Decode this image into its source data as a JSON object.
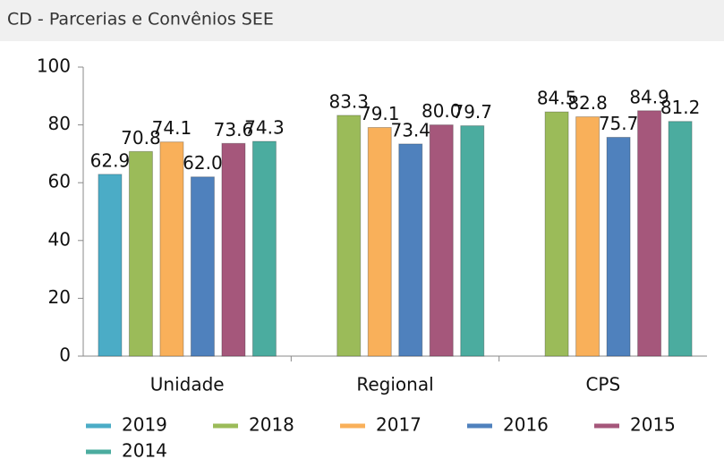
{
  "chart_data": {
    "type": "bar",
    "title": "CD - Parcerias e Convênios SEE",
    "categories": [
      "Unidade",
      "Regional",
      "CPS"
    ],
    "series": [
      {
        "name": "2019",
        "color": "#4bacc6",
        "values": [
          62.9,
          null,
          null
        ],
        "value_labels": [
          "62.9",
          null,
          null
        ]
      },
      {
        "name": "2018",
        "color": "#9bbb59",
        "values": [
          70.8,
          83.3,
          84.5
        ],
        "value_labels": [
          "70.8",
          "83.3",
          "84.5"
        ]
      },
      {
        "name": "2017",
        "color": "#f9b05a",
        "values": [
          74.1,
          79.1,
          82.8
        ],
        "value_labels": [
          "74.1",
          "79.1",
          "82.8"
        ]
      },
      {
        "name": "2016",
        "color": "#4f81bd",
        "values": [
          62.0,
          73.4,
          75.7
        ],
        "value_labels": [
          "62.0",
          "73.4",
          "75.7"
        ]
      },
      {
        "name": "2015",
        "color": "#a5577b",
        "values": [
          73.6,
          80.0,
          84.9
        ],
        "value_labels": [
          "73.6",
          "80.0",
          "84.9"
        ]
      },
      {
        "name": "2014",
        "color": "#4bac9f",
        "values": [
          74.3,
          79.7,
          81.2
        ],
        "value_labels": [
          "74.3",
          "79.7",
          "81.2"
        ]
      }
    ],
    "ylim": [
      0,
      100
    ],
    "yticks": [
      0,
      20,
      40,
      60,
      80,
      100
    ],
    "grid": false
  }
}
